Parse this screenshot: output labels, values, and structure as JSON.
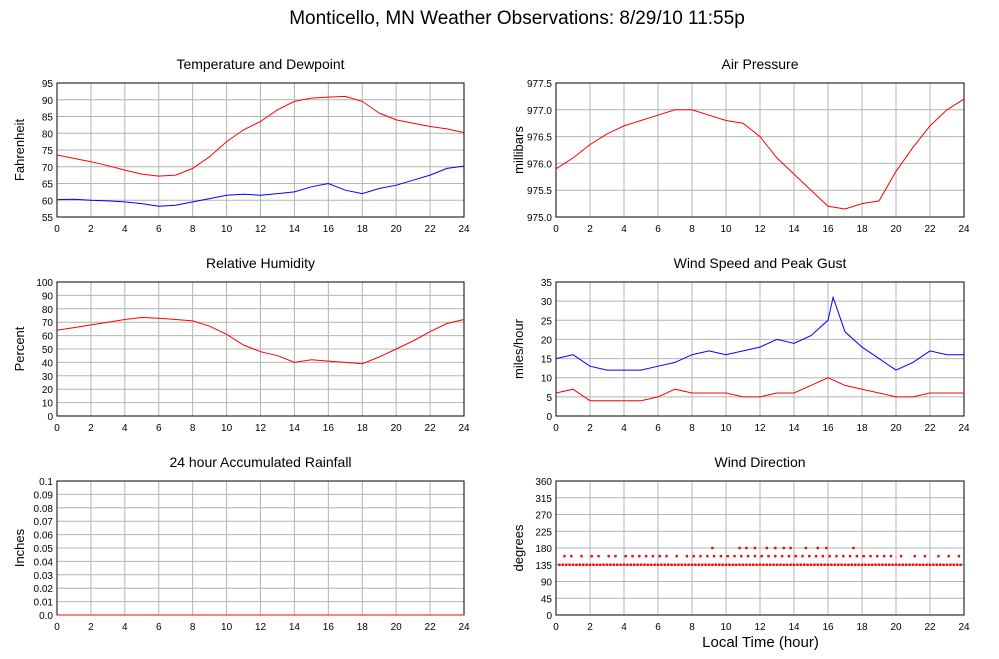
{
  "title": "Monticello, MN Weather Observations: 8/29/10 11:55p",
  "xlabel": "Local Time (hour)",
  "colors": {
    "red": "#ff0000",
    "blue": "#0000ff",
    "grid": "#b4b4b4"
  },
  "chart_data": [
    {
      "type": "line",
      "title": "Temperature and Dewpoint",
      "ylabel": "Fahrenheit",
      "xlim": [
        0,
        24
      ],
      "ylim": [
        55,
        95
      ],
      "xticks": [
        0,
        2,
        4,
        6,
        8,
        10,
        12,
        14,
        16,
        18,
        20,
        22,
        24
      ],
      "yticks": [
        "55",
        "60",
        "65",
        "70",
        "75",
        "80",
        "85",
        "90",
        "95"
      ],
      "grid": true,
      "series": [
        {
          "color": "#ff0000",
          "x": [
            0,
            1,
            2,
            3,
            4,
            5,
            6,
            7,
            8,
            9,
            10,
            11,
            12,
            13,
            14,
            15,
            16,
            17,
            18,
            19,
            20,
            21,
            22,
            23,
            24
          ],
          "y": [
            73.5,
            72.5,
            71.5,
            70.3,
            69.0,
            67.8,
            67.2,
            67.5,
            69.5,
            73.0,
            77.5,
            81.0,
            83.5,
            87.0,
            89.5,
            90.5,
            90.8,
            91.0,
            89.5,
            86.0,
            84.0,
            83.0,
            82.0,
            81.3,
            80.2
          ]
        },
        {
          "color": "#0000ff",
          "x": [
            0,
            1,
            2,
            3,
            4,
            5,
            6,
            7,
            8,
            9,
            10,
            11,
            12,
            13,
            14,
            15,
            16,
            17,
            18,
            19,
            20,
            21,
            22,
            23,
            24
          ],
          "y": [
            60.2,
            60.3,
            60.0,
            59.8,
            59.5,
            59.0,
            58.2,
            58.5,
            59.5,
            60.5,
            61.5,
            61.8,
            61.5,
            62.0,
            62.5,
            64.0,
            65.0,
            63.0,
            62.0,
            63.5,
            64.5,
            66.0,
            67.5,
            69.5,
            70.2
          ]
        }
      ]
    },
    {
      "type": "line",
      "title": "Air Pressure",
      "ylabel": "millibars",
      "xlim": [
        0,
        24
      ],
      "ylim": [
        975.0,
        977.5
      ],
      "xticks": [
        0,
        2,
        4,
        6,
        8,
        10,
        12,
        14,
        16,
        18,
        20,
        22,
        24
      ],
      "yticks": [
        "975.0",
        "975.5",
        "976.0",
        "976.5",
        "977.0",
        "977.5"
      ],
      "grid": true,
      "series": [
        {
          "color": "#ff0000",
          "x": [
            0,
            0.5,
            1,
            2,
            3,
            4,
            5,
            6,
            7,
            8,
            9,
            10,
            11,
            12,
            13,
            14,
            15,
            16,
            17,
            18,
            19,
            20,
            21,
            22,
            23,
            24
          ],
          "y": [
            975.9,
            976.0,
            976.1,
            976.35,
            976.55,
            976.7,
            976.8,
            976.9,
            977.0,
            977.0,
            976.9,
            976.8,
            976.75,
            976.5,
            976.1,
            975.8,
            975.5,
            975.2,
            975.15,
            975.25,
            975.3,
            975.85,
            976.3,
            976.7,
            977.0,
            977.2
          ]
        }
      ]
    },
    {
      "type": "line",
      "title": "Relative Humidity",
      "ylabel": "Percent",
      "xlim": [
        0,
        24
      ],
      "ylim": [
        0,
        100
      ],
      "xticks": [
        0,
        2,
        4,
        6,
        8,
        10,
        12,
        14,
        16,
        18,
        20,
        22,
        24
      ],
      "yticks": [
        "0",
        "10",
        "20",
        "30",
        "40",
        "50",
        "60",
        "70",
        "80",
        "90",
        "100"
      ],
      "grid": true,
      "series": [
        {
          "color": "#ff0000",
          "x": [
            0,
            1,
            2,
            3,
            4,
            5,
            6,
            7,
            8,
            9,
            10,
            11,
            12,
            13,
            14,
            15,
            16,
            17,
            18,
            19,
            20,
            21,
            22,
            23,
            24
          ],
          "y": [
            64,
            66,
            68,
            70,
            72,
            73.5,
            73,
            72,
            71,
            67,
            61,
            53,
            48,
            45,
            40,
            42,
            41,
            40,
            39,
            44,
            50,
            56,
            63,
            69,
            72
          ]
        }
      ]
    },
    {
      "type": "line",
      "title": "Wind Speed and Peak Gust",
      "ylabel": "miles/hour",
      "xlim": [
        0,
        24
      ],
      "ylim": [
        0,
        35
      ],
      "xticks": [
        0,
        2,
        4,
        6,
        8,
        10,
        12,
        14,
        16,
        18,
        20,
        22,
        24
      ],
      "yticks": [
        "0",
        "5",
        "10",
        "15",
        "20",
        "25",
        "30",
        "35"
      ],
      "grid": true,
      "series": [
        {
          "color": "#0000ff",
          "x": [
            0,
            1,
            2,
            3,
            4,
            5,
            6,
            7,
            8,
            9,
            10,
            11,
            12,
            13,
            14,
            15,
            16,
            16.3,
            17,
            18,
            19,
            20,
            21,
            22,
            23,
            24
          ],
          "y": [
            15,
            16,
            13,
            12,
            12,
            12,
            13,
            14,
            16,
            17,
            16,
            17,
            18,
            20,
            19,
            21,
            25,
            31,
            22,
            18,
            15,
            12,
            14,
            17,
            16,
            16
          ]
        },
        {
          "color": "#ff0000",
          "x": [
            0,
            1,
            2,
            3,
            4,
            5,
            6,
            7,
            8,
            9,
            10,
            11,
            12,
            13,
            14,
            15,
            16,
            17,
            18,
            19,
            20,
            21,
            22,
            23,
            24
          ],
          "y": [
            6,
            7,
            4,
            4,
            4,
            4,
            5,
            7,
            6,
            6,
            6,
            5,
            5,
            6,
            6,
            8,
            10,
            8,
            7,
            6,
            5,
            5,
            6,
            6,
            6
          ]
        }
      ]
    },
    {
      "type": "line",
      "title": "24 hour Accumulated Rainfall",
      "ylabel": "Inches",
      "xlim": [
        0,
        24
      ],
      "ylim": [
        0,
        0.1
      ],
      "xticks": [
        0,
        2,
        4,
        6,
        8,
        10,
        12,
        14,
        16,
        18,
        20,
        22,
        24
      ],
      "yticks": [
        "0.0",
        "0.01",
        "0.02",
        "0.03",
        "0.04",
        "0.05",
        "0.06",
        "0.07",
        "0.08",
        "0.09",
        "0.1"
      ],
      "grid": true,
      "series": [
        {
          "color": "#ff0000",
          "x": [
            0,
            24
          ],
          "y": [
            0,
            0
          ]
        }
      ]
    },
    {
      "type": "scatter",
      "title": "Wind Direction",
      "ylabel": "degrees",
      "xlim": [
        0,
        24
      ],
      "ylim": [
        0,
        360
      ],
      "xticks": [
        0,
        2,
        4,
        6,
        8,
        10,
        12,
        14,
        16,
        18,
        20,
        22,
        24
      ],
      "yticks": [
        "0",
        "45",
        "90",
        "135",
        "180",
        "225",
        "270",
        "315",
        "360"
      ],
      "grid": true,
      "series": [
        {
          "color": "#ff0000",
          "x": [
            0.2,
            0.4,
            0.6,
            0.8,
            1.0,
            1.2,
            1.4,
            1.6,
            1.8,
            2.0,
            2.2,
            2.4,
            2.6,
            2.8,
            3.0,
            3.2,
            3.4,
            3.6,
            3.8,
            4.0,
            4.2,
            4.4,
            4.6,
            4.8,
            5.0,
            5.2,
            5.4,
            5.6,
            5.8,
            6.0,
            6.2,
            6.4,
            6.6,
            6.8,
            7.0,
            7.2,
            7.4,
            7.6,
            7.8,
            8.0,
            8.2,
            8.4,
            8.6,
            8.8,
            9.0,
            9.2,
            9.4,
            9.6,
            9.8,
            10.0,
            10.2,
            10.4,
            10.6,
            10.8,
            11.0,
            11.2,
            11.4,
            11.6,
            11.8,
            12.0,
            12.2,
            12.4,
            12.6,
            12.8,
            13.0,
            13.2,
            13.4,
            13.6,
            13.8,
            14.0,
            14.2,
            14.4,
            14.6,
            14.8,
            15.0,
            15.2,
            15.4,
            15.6,
            15.8,
            16.0,
            16.2,
            16.4,
            16.6,
            16.8,
            17.0,
            17.2,
            17.4,
            17.6,
            17.8,
            18.0,
            18.2,
            18.4,
            18.6,
            18.8,
            19.0,
            19.2,
            19.4,
            19.6,
            19.8,
            20.0,
            20.2,
            20.4,
            20.6,
            20.8,
            21.0,
            21.2,
            21.4,
            21.6,
            21.8,
            22.0,
            22.2,
            22.4,
            22.6,
            22.8,
            23.0,
            23.2,
            23.4,
            23.6,
            23.8,
            0.5,
            0.9,
            1.5,
            2.1,
            2.5,
            3.1,
            3.5,
            4.1,
            4.5,
            4.9,
            5.3,
            5.7,
            6.1,
            6.5,
            7.1,
            7.7,
            8.1,
            8.5,
            8.9,
            9.3,
            9.7,
            10.1,
            10.5,
            10.9,
            11.3,
            11.7,
            12.1,
            12.5,
            12.9,
            13.3,
            13.7,
            14.1,
            14.5,
            14.9,
            15.3,
            15.7,
            16.1,
            16.5,
            16.9,
            17.3,
            17.7,
            18.1,
            18.5,
            18.9,
            19.3,
            19.7,
            20.3,
            21.1,
            21.7,
            22.5,
            23.1,
            23.7,
            9.2,
            10.8,
            11.2,
            11.7,
            12.4,
            12.9,
            13.4,
            13.8,
            14.7,
            15.4,
            15.9,
            17.5
          ],
          "y": [
            135,
            135,
            135,
            135,
            135,
            135,
            135,
            135,
            135,
            135,
            135,
            135,
            135,
            135,
            135,
            135,
            135,
            135,
            135,
            135,
            135,
            135,
            135,
            135,
            135,
            135,
            135,
            135,
            135,
            135,
            135,
            135,
            135,
            135,
            135,
            135,
            135,
            135,
            135,
            135,
            135,
            135,
            135,
            135,
            135,
            135,
            135,
            135,
            135,
            135,
            135,
            135,
            135,
            135,
            135,
            135,
            135,
            135,
            135,
            135,
            135,
            135,
            135,
            135,
            135,
            135,
            135,
            135,
            135,
            135,
            135,
            135,
            135,
            135,
            135,
            135,
            135,
            135,
            135,
            135,
            135,
            135,
            135,
            135,
            135,
            135,
            135,
            135,
            135,
            135,
            135,
            135,
            135,
            135,
            135,
            135,
            135,
            135,
            135,
            135,
            135,
            135,
            135,
            135,
            135,
            135,
            135,
            135,
            135,
            135,
            135,
            135,
            135,
            135,
            135,
            135,
            135,
            135,
            135,
            158,
            158,
            158,
            158,
            158,
            158,
            158,
            158,
            158,
            158,
            158,
            158,
            158,
            158,
            158,
            158,
            158,
            158,
            158,
            158,
            158,
            158,
            158,
            158,
            158,
            158,
            158,
            158,
            158,
            158,
            158,
            158,
            158,
            158,
            158,
            158,
            158,
            158,
            158,
            158,
            158,
            158,
            158,
            158,
            158,
            158,
            158,
            158,
            158,
            158,
            158,
            158,
            180,
            180,
            180,
            180,
            180,
            180,
            180,
            180,
            180,
            180,
            180,
            180
          ]
        }
      ]
    }
  ]
}
